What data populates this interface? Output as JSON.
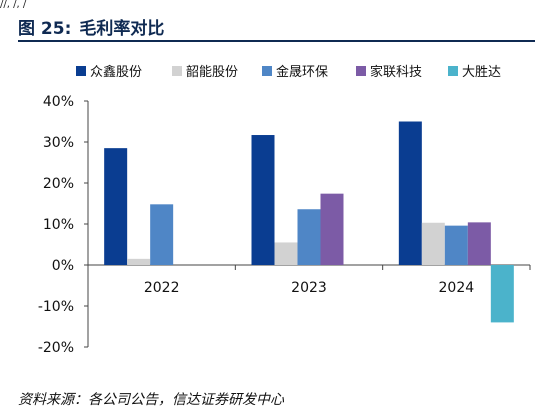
{
  "header": {
    "top_fragment": "//, /, /",
    "figure_label": "图 25:",
    "figure_title": "毛利率对比"
  },
  "source": "资料来源：各公司公告，信达证券研发中心",
  "colors": {
    "众鑫股份": "#0a3d91",
    "韶能股份": "#d2d2d2",
    "金晟环保": "#4f86c6",
    "家联科技": "#7c5ba6",
    "大胜达": "#4bb3cb"
  },
  "chart_data": {
    "type": "bar",
    "categories": [
      "2022",
      "2023",
      "2024"
    ],
    "series": [
      {
        "name": "众鑫股份",
        "values": [
          28.5,
          31.7,
          35.0
        ]
      },
      {
        "name": "韶能股份",
        "values": [
          1.5,
          5.5,
          10.3
        ]
      },
      {
        "name": "金晟环保",
        "values": [
          14.8,
          13.6,
          9.6
        ]
      },
      {
        "name": "家联科技",
        "values": [
          null,
          17.4,
          10.4
        ]
      },
      {
        "name": "大胜达",
        "values": [
          null,
          null,
          -14.0
        ]
      }
    ],
    "yticks": [
      "40%",
      "30%",
      "20%",
      "10%",
      "0%",
      "-10%",
      "-20%"
    ],
    "ylim": [
      -20,
      40
    ],
    "legend_position": "top",
    "grid": false
  }
}
